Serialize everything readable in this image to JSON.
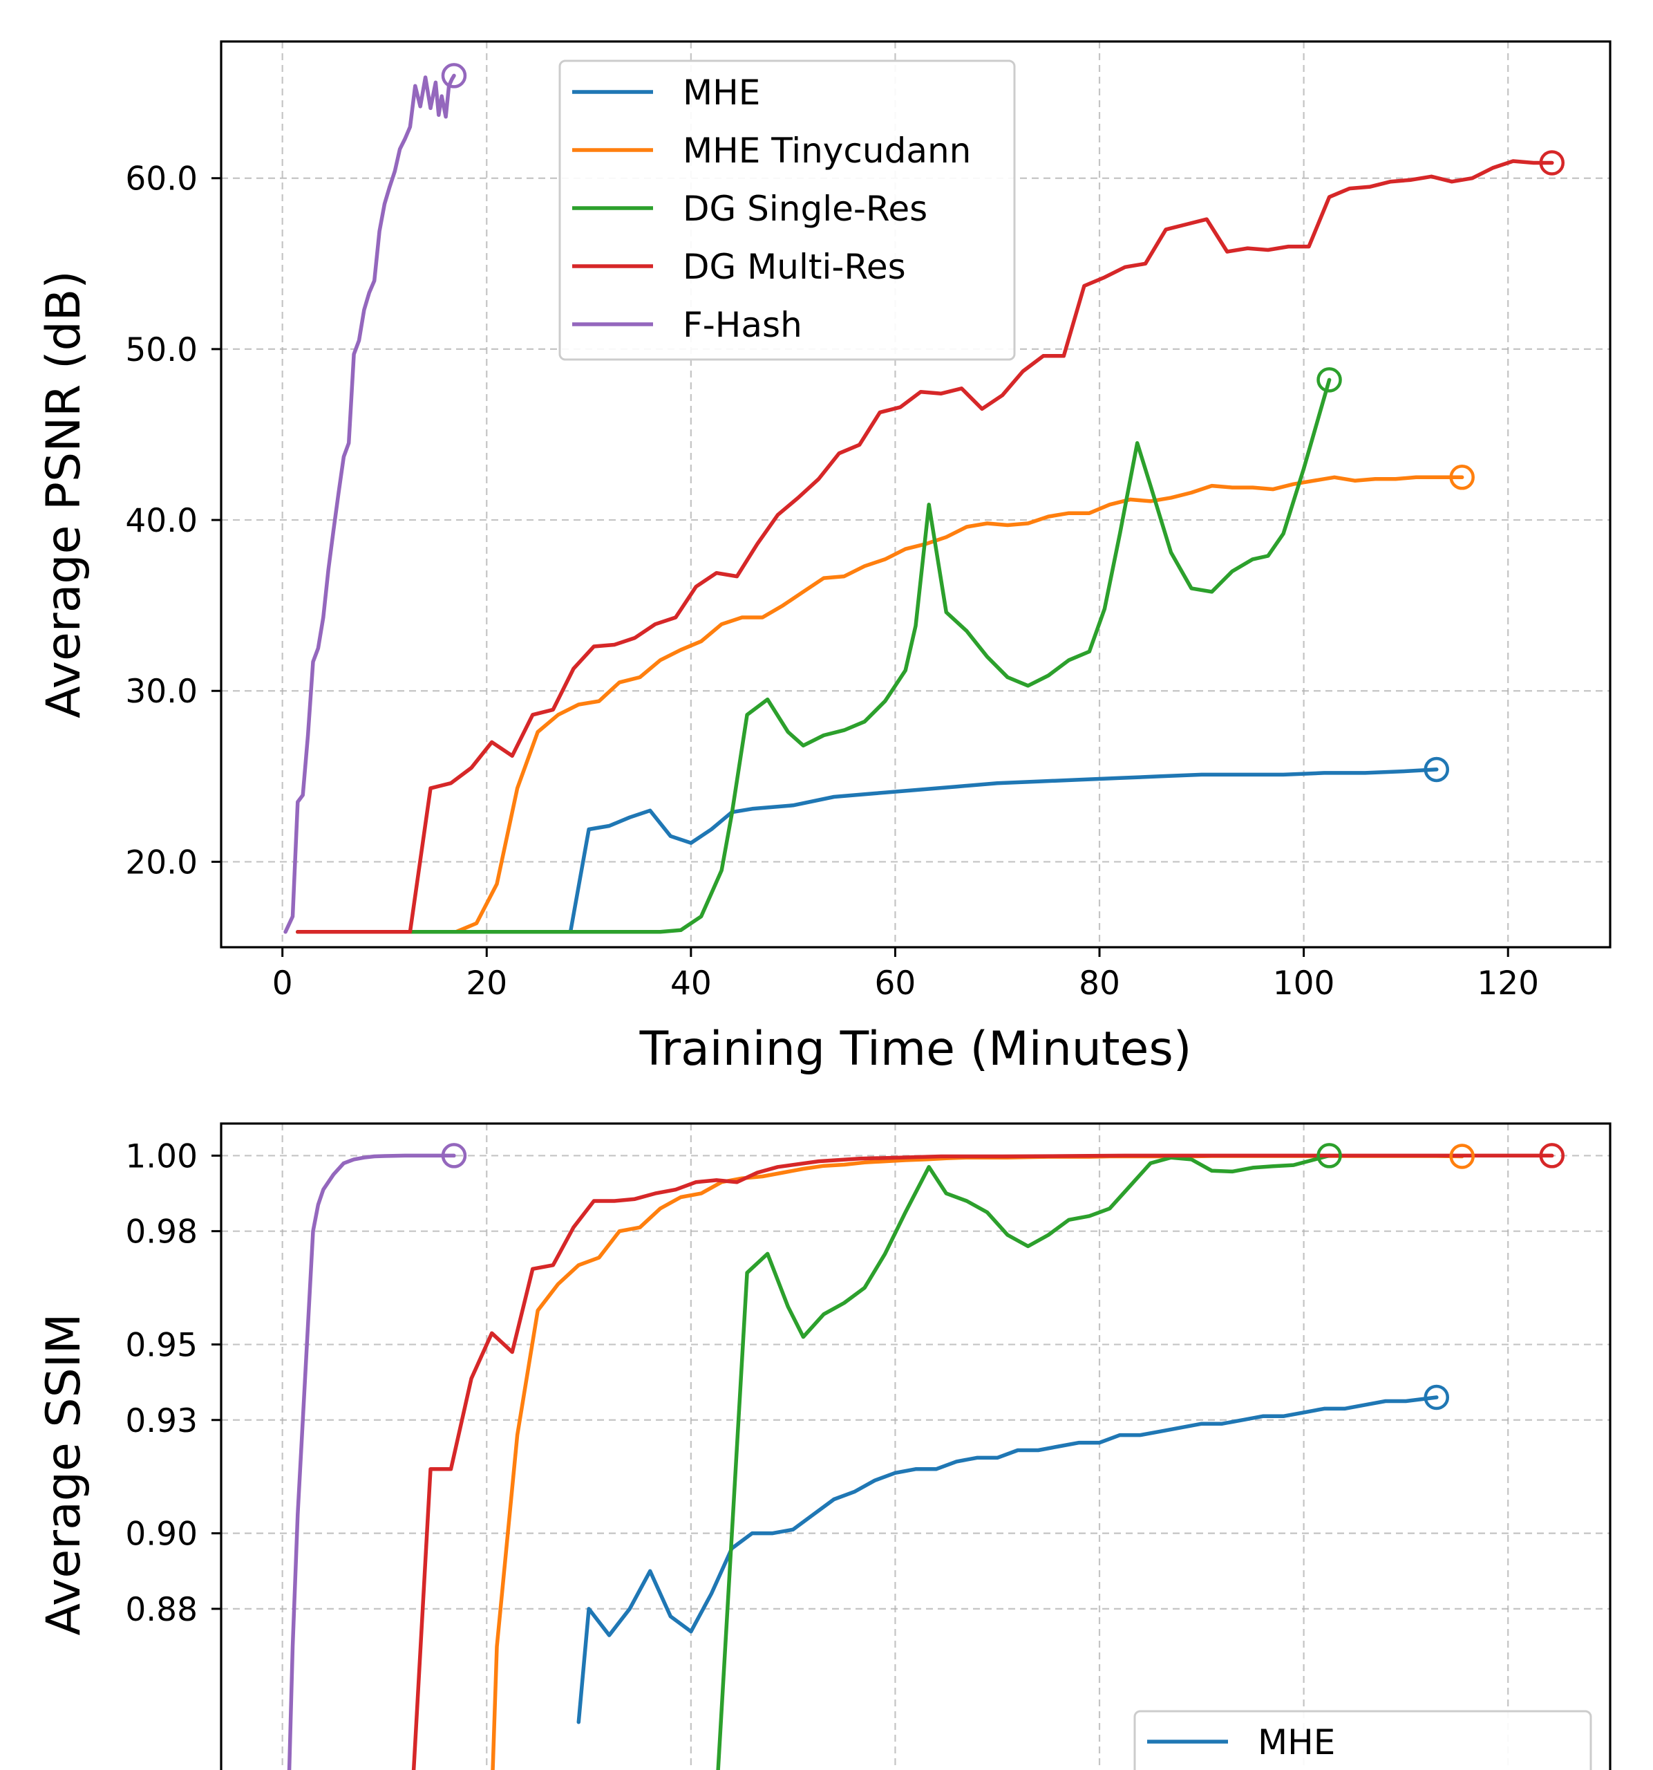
{
  "chart_data": [
    {
      "type": "line",
      "xlabel": "Training Time (Minutes)",
      "ylabel": "Average PSNR (dB)",
      "xlim": [
        -6,
        130
      ],
      "ylim": [
        15,
        68
      ],
      "xticks": [
        0,
        20,
        40,
        60,
        80,
        100,
        120
      ],
      "xtick_labels": [
        "0",
        "20",
        "40",
        "60",
        "80",
        "100",
        "120"
      ],
      "yticks": [
        20,
        30,
        40,
        50,
        60
      ],
      "ytick_labels": [
        "20.0",
        "30.0",
        "40.0",
        "50.0",
        "60.0"
      ],
      "grid": true,
      "legend": "top-center",
      "series": [
        {
          "name": "MHE",
          "color": "#1f77b4",
          "x": [
            1.5,
            28.2,
            30,
            32,
            34,
            36,
            38,
            40,
            42,
            44,
            46,
            50,
            54,
            58,
            62,
            66,
            70,
            74,
            78,
            82,
            86,
            90,
            94,
            98,
            102,
            106,
            110,
            113
          ],
          "y": [
            15.9,
            15.9,
            21.9,
            22.1,
            22.6,
            23.0,
            21.5,
            21.1,
            21.9,
            22.9,
            23.1,
            23.3,
            23.8,
            24.0,
            24.2,
            24.4,
            24.6,
            24.7,
            24.8,
            24.9,
            25.0,
            25.1,
            25.1,
            25.1,
            25.2,
            25.2,
            25.3,
            25.4
          ]
        },
        {
          "name": "MHE Tinycudann",
          "color": "#ff7f0e",
          "x": [
            1.5,
            17,
            19,
            21,
            23,
            25,
            27,
            29,
            31,
            33,
            35,
            37,
            39,
            41,
            43,
            45,
            47,
            49,
            51,
            53,
            55,
            57,
            59,
            61,
            63,
            65,
            67,
            69,
            71,
            73,
            75,
            77,
            79,
            81,
            83,
            85,
            87,
            89,
            91,
            93,
            95,
            97,
            99,
            101,
            103,
            105,
            107,
            109,
            111,
            113,
            115.5
          ],
          "y": [
            15.9,
            15.9,
            16.4,
            18.7,
            24.3,
            27.6,
            28.6,
            29.2,
            29.4,
            30.5,
            30.8,
            31.8,
            32.4,
            32.9,
            33.9,
            34.3,
            34.3,
            35.0,
            35.8,
            36.6,
            36.7,
            37.3,
            37.7,
            38.3,
            38.6,
            39.0,
            39.6,
            39.8,
            39.7,
            39.8,
            40.2,
            40.4,
            40.4,
            40.9,
            41.2,
            41.1,
            41.3,
            41.6,
            42.0,
            41.9,
            41.9,
            41.8,
            42.1,
            42.3,
            42.5,
            42.3,
            42.4,
            42.4,
            42.5,
            42.5,
            42.5
          ]
        },
        {
          "name": "DG Single-Res",
          "color": "#2ca02c",
          "x": [
            1.5,
            37,
            39,
            41,
            43,
            44,
            45.5,
            47.5,
            49.5,
            51,
            53,
            55,
            57,
            59,
            61,
            62,
            63.3,
            65,
            67,
            69,
            71,
            73,
            75,
            77,
            79,
            80.5,
            82,
            83.7,
            85,
            87,
            89,
            91,
            93,
            95,
            96.5,
            98,
            100,
            102.5
          ],
          "y": [
            15.9,
            15.9,
            16.0,
            16.8,
            19.5,
            22.8,
            28.6,
            29.5,
            27.6,
            26.8,
            27.4,
            27.7,
            28.2,
            29.4,
            31.2,
            33.8,
            40.9,
            34.6,
            33.5,
            32.0,
            30.8,
            30.3,
            30.9,
            31.8,
            32.3,
            34.8,
            39.2,
            44.5,
            42.0,
            38.1,
            36.0,
            35.8,
            37.0,
            37.7,
            37.9,
            39.2,
            43.0,
            48.2
          ]
        },
        {
          "name": "DG Multi-Res",
          "color": "#d62728",
          "x": [
            1.5,
            12.5,
            14.5,
            16.5,
            18.5,
            20.5,
            22.5,
            24.5,
            26.5,
            28.5,
            30.5,
            32.5,
            34.5,
            36.5,
            38.5,
            40.5,
            42.5,
            44.5,
            46.5,
            48.5,
            50.5,
            52.5,
            54.5,
            56.5,
            58.5,
            60.5,
            62.5,
            64.5,
            66.5,
            68.5,
            70.5,
            72.5,
            74.5,
            76.5,
            78.5,
            80.5,
            82.5,
            84.5,
            86.5,
            88.5,
            90.5,
            92.5,
            94.5,
            96.5,
            98.5,
            100.5,
            102.5,
            104.5,
            106.5,
            108.5,
            110.5,
            112.5,
            114.5,
            116.5,
            118.5,
            120.5,
            122.5,
            124.3
          ],
          "y": [
            15.9,
            15.9,
            24.3,
            24.6,
            25.5,
            27.0,
            26.2,
            28.6,
            28.9,
            31.3,
            32.6,
            32.7,
            33.1,
            33.9,
            34.3,
            36.1,
            36.9,
            36.7,
            38.6,
            40.3,
            41.3,
            42.4,
            43.9,
            44.4,
            46.3,
            46.6,
            47.5,
            47.4,
            47.7,
            46.5,
            47.3,
            48.7,
            49.6,
            49.6,
            53.7,
            54.2,
            54.8,
            55.0,
            57.0,
            57.3,
            57.6,
            55.7,
            55.9,
            55.8,
            56.0,
            56.0,
            58.9,
            59.4,
            59.5,
            59.8,
            59.9,
            60.1,
            59.8,
            60.0,
            60.6,
            61.0,
            60.9,
            60.9
          ]
        },
        {
          "name": "F-Hash",
          "color": "#9467bd",
          "x": [
            0.3,
            1.0,
            1.5,
            2.0,
            2.5,
            3.0,
            3.5,
            4.0,
            4.5,
            5.0,
            5.5,
            6.0,
            6.5,
            7.0,
            7.5,
            8.0,
            8.5,
            9.0,
            9.5,
            10.0,
            10.5,
            11.0,
            11.5,
            12.0,
            12.5,
            13.0,
            13.5,
            14.0,
            14.5,
            15.0,
            15.3,
            15.6,
            16.0,
            16.3,
            16.6,
            16.8
          ],
          "y": [
            15.9,
            16.8,
            23.5,
            23.9,
            27.4,
            31.7,
            32.5,
            34.3,
            37.1,
            39.4,
            41.6,
            43.7,
            44.5,
            49.7,
            50.5,
            52.3,
            53.3,
            54.0,
            56.9,
            58.5,
            59.5,
            60.4,
            61.7,
            62.3,
            63.0,
            65.4,
            64.2,
            65.9,
            64.1,
            65.6,
            63.7,
            64.8,
            63.6,
            65.4,
            65.8,
            66.0
          ]
        }
      ]
    },
    {
      "type": "line",
      "xlabel": "",
      "ylabel": "Average SSIM",
      "xlim": [
        -6,
        130
      ],
      "ylim": [
        0.83,
        1.0085
      ],
      "yticks": [
        0.88,
        0.9,
        0.93,
        0.95,
        0.98,
        1.0
      ],
      "ytick_labels": [
        "0.88",
        "0.90",
        "0.93",
        "0.95",
        "0.98",
        "1.00"
      ],
      "grid": true,
      "legend": "bottom-right",
      "legend_labels": [
        "MHE"
      ],
      "series": [
        {
          "name": "MHE",
          "color": "#1f77b4",
          "x": [
            29,
            30,
            32,
            34,
            36,
            38,
            40,
            42,
            44,
            46,
            48,
            50,
            52,
            54,
            56,
            58,
            60,
            62,
            64,
            66,
            68,
            70,
            72,
            74,
            76,
            78,
            80,
            82,
            84,
            86,
            88,
            90,
            92,
            94,
            96,
            98,
            100,
            102,
            104,
            106,
            108,
            110,
            113
          ],
          "y": [
            0.85,
            0.88,
            0.873,
            0.88,
            0.89,
            0.878,
            0.874,
            0.884,
            0.896,
            0.9,
            0.9,
            0.901,
            0.905,
            0.909,
            0.911,
            0.914,
            0.916,
            0.917,
            0.917,
            0.919,
            0.92,
            0.92,
            0.922,
            0.922,
            0.923,
            0.924,
            0.924,
            0.926,
            0.926,
            0.927,
            0.928,
            0.929,
            0.929,
            0.93,
            0.931,
            0.931,
            0.932,
            0.933,
            0.933,
            0.934,
            0.935,
            0.935,
            0.936
          ]
        },
        {
          "name": "MHE Tinycudann",
          "color": "#ff7f0e",
          "x": [
            20.5,
            21,
            23,
            25,
            27,
            29,
            31,
            33,
            35,
            37,
            39,
            41,
            43,
            45,
            47,
            49,
            51,
            53,
            55,
            57,
            59,
            61,
            63,
            65,
            67,
            69,
            71,
            73,
            75,
            77,
            79,
            81,
            83,
            85,
            87,
            89,
            91,
            93,
            95,
            97,
            99,
            101,
            103,
            105,
            107,
            109,
            111,
            113,
            115.5
          ],
          "y": [
            0.83,
            0.87,
            0.926,
            0.959,
            0.966,
            0.971,
            0.973,
            0.98,
            0.981,
            0.986,
            0.989,
            0.99,
            0.993,
            0.994,
            0.9945,
            0.9955,
            0.9965,
            0.9973,
            0.9976,
            0.9982,
            0.9985,
            0.9988,
            0.999,
            0.9993,
            0.9995,
            0.9995,
            0.9995,
            0.9996,
            0.9997,
            0.9997,
            0.9997,
            0.9998,
            0.9998,
            0.9998,
            0.9998,
            0.9998,
            0.9999,
            0.9999,
            0.9999,
            0.9999,
            0.9999,
            0.9999,
            0.9999,
            0.9999,
            0.9999,
            0.9999,
            0.9999,
            0.9999,
            0.9998
          ]
        },
        {
          "name": "DG Single-Res",
          "color": "#2ca02c",
          "x": [
            42.5,
            45.5,
            47.5,
            49.5,
            51,
            53,
            55,
            57,
            59,
            61,
            63.3,
            65,
            67,
            69,
            71,
            73,
            75,
            77,
            79,
            81,
            83,
            85,
            87,
            89,
            91,
            93,
            95,
            97,
            99,
            102.5
          ],
          "y": [
            0.83,
            0.969,
            0.974,
            0.96,
            0.952,
            0.958,
            0.961,
            0.965,
            0.974,
            0.985,
            0.997,
            0.99,
            0.988,
            0.985,
            0.979,
            0.976,
            0.979,
            0.983,
            0.984,
            0.986,
            0.992,
            0.998,
            0.9995,
            0.999,
            0.996,
            0.9958,
            0.9968,
            0.9972,
            0.9975,
            1.0
          ]
        },
        {
          "name": "DG Multi-Res",
          "color": "#d62728",
          "x": [
            12.7,
            14.5,
            16.5,
            18.5,
            20.5,
            22.5,
            24.5,
            26.5,
            28.5,
            30.5,
            32.5,
            34.5,
            36.5,
            38.5,
            40.5,
            42.5,
            44.5,
            46.5,
            48.5,
            52.5,
            56.5,
            60.5,
            64.5,
            70.5,
            76.5,
            82.5,
            90.5,
            100.5,
            110.5,
            124.3
          ],
          "y": [
            0.83,
            0.917,
            0.917,
            0.941,
            0.953,
            0.948,
            0.97,
            0.971,
            0.981,
            0.988,
            0.988,
            0.9885,
            0.99,
            0.991,
            0.993,
            0.9935,
            0.993,
            0.9955,
            0.997,
            0.9985,
            0.9992,
            0.9995,
            0.9998,
            0.9998,
            0.9999,
            1.0,
            1.0,
            1.0,
            1.0,
            1.0
          ]
        },
        {
          "name": "F-Hash",
          "color": "#9467bd",
          "x": [
            0.6,
            1.0,
            1.5,
            2.0,
            2.5,
            3.0,
            3.5,
            4.0,
            5.0,
            6.0,
            7.0,
            8.0,
            9.0,
            10.0,
            12.0,
            14.0,
            16.8
          ],
          "y": [
            0.83,
            0.87,
            0.905,
            0.93,
            0.955,
            0.98,
            0.987,
            0.991,
            0.995,
            0.998,
            0.999,
            0.9995,
            0.9998,
            0.9999,
            1.0,
            1.0,
            1.0
          ]
        }
      ]
    }
  ]
}
